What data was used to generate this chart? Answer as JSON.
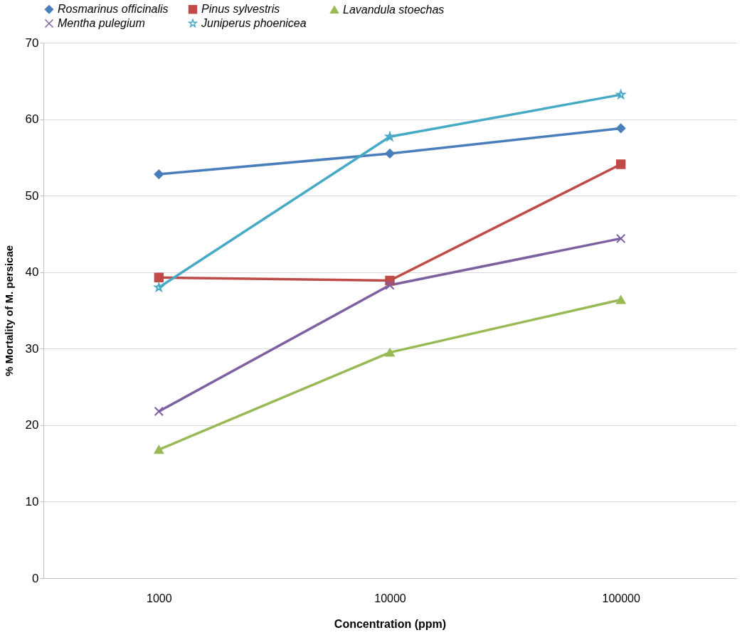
{
  "chart_data": {
    "type": "line",
    "xlabel": "Concentration (ppm)",
    "ylabel": "% Mortality of M. persicae",
    "categories": [
      "1000",
      "10000",
      "100000"
    ],
    "series": [
      {
        "name": "Rosmarinus officinalis",
        "color": "#4a7ebb",
        "marker": "diamond",
        "values": [
          52.8,
          55.5,
          58.8
        ]
      },
      {
        "name": "Pinus sylvestris",
        "color": "#be4b48",
        "marker": "square",
        "values": [
          39.3,
          38.9,
          54.1
        ]
      },
      {
        "name": "Lavandula stoechas",
        "color": "#98b954",
        "marker": "triangle",
        "values": [
          16.8,
          29.5,
          36.4
        ]
      },
      {
        "name": "Mentha pulegium",
        "color": "#7d60a0",
        "marker": "cross",
        "values": [
          21.8,
          38.3,
          44.4
        ]
      },
      {
        "name": "Juniperus  phoenicea",
        "color": "#46aac5",
        "marker": "star",
        "values": [
          38.0,
          57.7,
          63.2
        ]
      }
    ],
    "ylim": [
      0,
      70
    ],
    "yticks": [
      0,
      10,
      20,
      30,
      40,
      50,
      60,
      70
    ],
    "grid": "y",
    "legend": "top",
    "line_style": "solid"
  }
}
